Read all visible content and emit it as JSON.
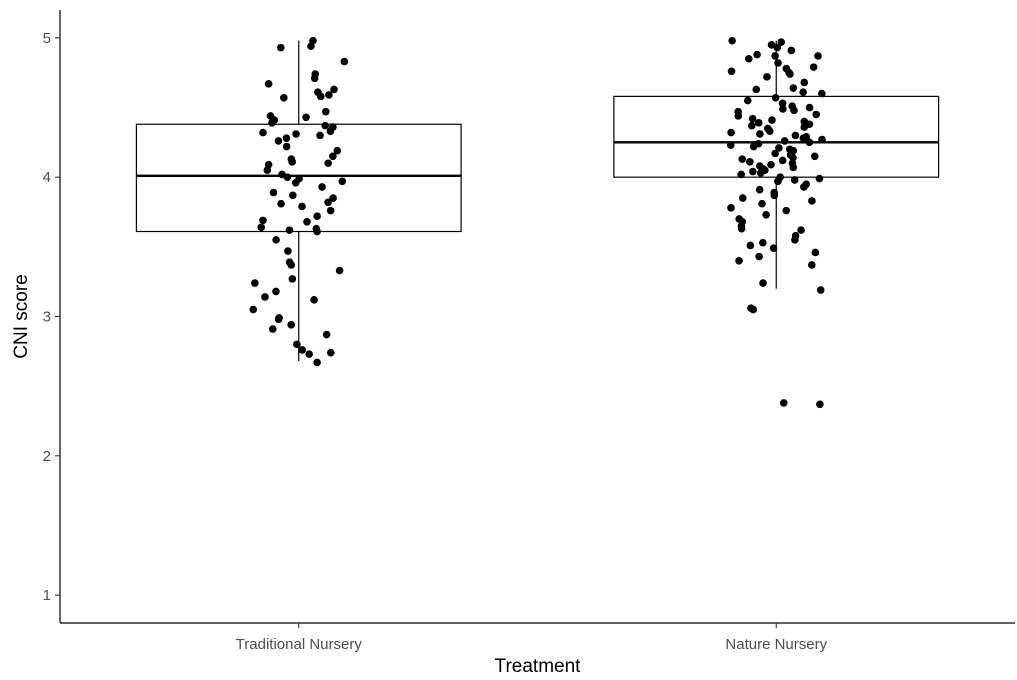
{
  "chart_data": {
    "type": "boxplot",
    "xlabel": "Treatment",
    "ylabel": "CNI score",
    "ylim": [
      0.8,
      5.2
    ],
    "yticks": [
      1,
      2,
      3,
      4,
      5
    ],
    "grid": false,
    "colors": {
      "box_stroke": "#000000",
      "point": "#000000",
      "axis": "#000000"
    },
    "categories": [
      "Traditional Nursery",
      "Nature Nursery"
    ],
    "boxes": [
      {
        "category": "Traditional Nursery",
        "whisker_low": 2.68,
        "q1": 3.61,
        "median": 4.01,
        "q3": 4.38,
        "whisker_high": 4.98
      },
      {
        "category": "Nature Nursery",
        "whisker_low": 3.2,
        "q1": 4.0,
        "median": 4.25,
        "q3": 4.58,
        "whisker_high": 4.98
      }
    ],
    "points": [
      {
        "category": "Traditional Nursery",
        "values": [
          4.98,
          4.93,
          4.94,
          4.83,
          4.74,
          4.71,
          4.67,
          4.63,
          4.61,
          4.59,
          4.58,
          4.57,
          4.47,
          4.44,
          4.43,
          4.41,
          4.39,
          4.37,
          4.36,
          4.33,
          4.32,
          4.31,
          4.3,
          4.28,
          4.26,
          4.22,
          4.19,
          4.15,
          4.13,
          4.11,
          4.1,
          4.09,
          4.05,
          4.02,
          4.0,
          3.99,
          3.97,
          3.96,
          3.93,
          3.89,
          3.87,
          3.85,
          3.82,
          3.81,
          3.79,
          3.76,
          3.72,
          3.69,
          3.68,
          3.64,
          3.63,
          3.62,
          3.61,
          3.55,
          3.47,
          3.39,
          3.37,
          3.33,
          3.27,
          3.24,
          3.18,
          3.14,
          3.12,
          3.05,
          2.99,
          2.98,
          2.94,
          2.91,
          2.87,
          2.8,
          2.76,
          2.74,
          2.73,
          2.67
        ]
      },
      {
        "category": "Nature Nursery",
        "values": [
          4.98,
          4.97,
          4.95,
          4.93,
          4.91,
          4.88,
          4.87,
          4.87,
          4.85,
          4.82,
          4.79,
          4.78,
          4.76,
          4.75,
          4.74,
          4.72,
          4.68,
          4.64,
          4.63,
          4.61,
          4.6,
          4.57,
          4.55,
          4.53,
          4.51,
          4.5,
          4.49,
          4.48,
          4.47,
          4.45,
          4.44,
          4.42,
          4.41,
          4.4,
          4.39,
          4.38,
          4.37,
          4.36,
          4.35,
          4.33,
          4.32,
          4.31,
          4.3,
          4.29,
          4.28,
          4.27,
          4.26,
          4.25,
          4.24,
          4.23,
          4.22,
          4.21,
          4.2,
          4.19,
          4.18,
          4.17,
          4.16,
          4.15,
          4.14,
          4.13,
          4.12,
          4.11,
          4.1,
          4.09,
          4.08,
          4.07,
          4.06,
          4.05,
          4.04,
          4.03,
          4.02,
          4.0,
          3.99,
          3.98,
          3.97,
          3.95,
          3.93,
          3.91,
          3.89,
          3.87,
          3.85,
          3.83,
          3.81,
          3.78,
          3.76,
          3.73,
          3.7,
          3.68,
          3.65,
          3.63,
          3.62,
          3.58,
          3.55,
          3.53,
          3.51,
          3.49,
          3.46,
          3.43,
          3.4,
          3.37,
          3.24,
          3.19,
          3.06,
          3.05,
          2.38,
          2.37
        ]
      }
    ]
  }
}
